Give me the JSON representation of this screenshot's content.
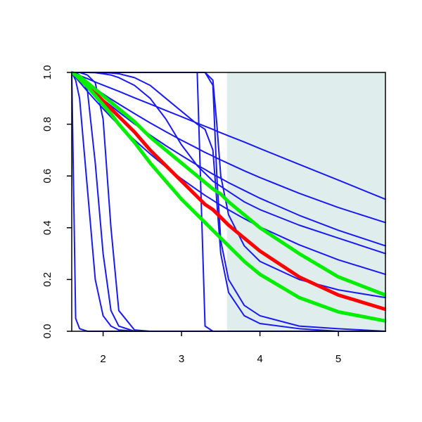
{
  "chart_data": {
    "type": "line",
    "x": [
      1.6,
      1.65,
      1.7,
      1.8,
      1.9,
      2.0,
      2.1,
      2.2,
      2.4,
      2.6,
      2.8,
      3.0,
      3.2,
      3.3,
      3.4,
      3.45,
      3.5,
      3.6,
      3.8,
      4.0,
      4.5,
      5.0,
      5.6
    ],
    "xlim": [
      1.6,
      5.6
    ],
    "ylim": [
      0,
      1
    ],
    "xticks": [
      2,
      3,
      4,
      5
    ],
    "yticks": [
      {
        "value": 0,
        "label": "0.0"
      },
      0.2,
      0.4,
      0.6,
      0.8,
      {
        "value": 1,
        "label": "1.0"
      }
    ],
    "shaded_region": [
      3.58,
      5.6
    ],
    "shade_color": "#e0eded",
    "series": [
      {
        "color": "#1a1aee",
        "values": [
          1,
          0.994,
          0.988,
          0.976,
          0.963,
          0.951,
          0.939,
          0.927,
          0.902,
          0.878,
          0.853,
          0.829,
          0.804,
          0.792,
          0.78,
          0.773,
          0.767,
          0.755,
          0.731,
          0.706,
          0.645,
          0.584,
          0.51
        ]
      },
      {
        "color": "#1a1aee",
        "values": [
          1,
          0.989,
          0.979,
          0.958,
          0.937,
          0.917,
          0.897,
          0.878,
          0.841,
          0.805,
          0.771,
          0.738,
          0.707,
          0.691,
          0.677,
          0.669,
          0.662,
          0.648,
          0.62,
          0.594,
          0.533,
          0.478,
          0.42
        ]
      },
      {
        "color": "#1a1aee",
        "values": [
          1,
          0.986,
          0.973,
          0.946,
          0.92,
          0.895,
          0.871,
          0.847,
          0.801,
          0.758,
          0.717,
          0.679,
          0.642,
          0.625,
          0.607,
          0.599,
          0.591,
          0.574,
          0.544,
          0.514,
          0.448,
          0.39,
          0.33
        ]
      },
      {
        "color": "#1a1aee",
        "values": [
          1,
          0.981,
          0.963,
          0.927,
          0.893,
          0.86,
          0.828,
          0.797,
          0.739,
          0.685,
          0.635,
          0.589,
          0.546,
          0.525,
          0.506,
          0.496,
          0.487,
          0.469,
          0.435,
          0.403,
          0.334,
          0.276,
          0.22
        ]
      },
      {
        "color": "#1a1aee",
        "values": [
          1,
          1,
          1,
          1,
          0.999,
          0.995,
          0.99,
          0.98,
          0.95,
          0.9,
          0.82,
          0.72,
          0.64,
          0.61,
          0.58,
          0.57,
          0.56,
          0.54,
          0.5,
          0.47,
          0.41,
          0.36,
          0.3
        ]
      },
      {
        "color": "#1a1aee",
        "values": [
          1,
          0.05,
          0.01,
          0,
          0,
          0,
          0,
          0,
          0,
          0,
          0,
          0,
          0,
          0,
          0,
          0,
          0,
          0,
          0,
          0,
          0,
          0,
          0
        ]
      },
      {
        "color": "#1a1aee",
        "values": [
          1,
          1,
          0.99,
          0.93,
          0.65,
          0.3,
          0.08,
          0.02,
          0,
          0,
          0,
          0,
          0,
          0,
          0,
          0,
          0,
          0,
          0,
          0,
          0,
          0,
          0
        ]
      },
      {
        "color": "#1a1aee",
        "values": [
          1,
          1,
          1,
          0.99,
          0.96,
          0.82,
          0.4,
          0.08,
          0.005,
          0,
          0,
          0,
          0,
          0,
          0,
          0,
          0,
          0,
          0,
          0,
          0,
          0,
          0
        ]
      },
      {
        "color": "#1a1aee",
        "values": [
          1,
          0.97,
          0.9,
          0.55,
          0.2,
          0.06,
          0.02,
          0.005,
          0,
          0,
          0,
          0,
          0,
          0,
          0,
          0,
          0,
          0,
          0,
          0,
          0,
          0,
          0
        ]
      },
      {
        "color": "#1a1aee",
        "values": [
          1,
          1,
          1,
          1,
          1,
          1,
          1,
          1,
          1,
          1,
          1,
          1,
          1,
          0.02,
          0,
          0,
          0,
          0,
          0,
          0,
          0,
          0,
          0
        ]
      },
      {
        "color": "#1a1aee",
        "values": [
          1,
          1,
          1,
          1,
          1,
          1,
          1,
          1,
          1,
          1,
          1,
          1,
          1,
          1,
          0.95,
          0.6,
          0.35,
          0.2,
          0.1,
          0.06,
          0.02,
          0.01,
          0
        ]
      },
      {
        "color": "#1a1aee",
        "values": [
          1,
          1,
          1,
          1,
          1,
          1,
          1,
          1,
          1,
          1,
          1,
          1,
          1,
          1,
          0.97,
          0.8,
          0.6,
          0.45,
          0.33,
          0.27,
          0.2,
          0.16,
          0.13
        ]
      },
      {
        "color": "#1a1aee",
        "values": [
          1,
          1,
          1,
          1,
          1,
          0.999,
          0.998,
          0.995,
          0.98,
          0.95,
          0.9,
          0.85,
          0.8,
          0.78,
          0.7,
          0.5,
          0.3,
          0.15,
          0.06,
          0.03,
          0.01,
          0,
          0
        ]
      },
      {
        "color": "#ff0000",
        "values": [
          1,
          0.99,
          0.98,
          0.95,
          0.92,
          0.89,
          0.86,
          0.83,
          0.77,
          0.7,
          0.64,
          0.58,
          0.52,
          0.49,
          0.47,
          0.455,
          0.44,
          0.41,
          0.36,
          0.31,
          0.21,
          0.14,
          0.085
        ]
      },
      {
        "color": "#00ee00",
        "values": [
          1,
          0.99,
          0.985,
          0.96,
          0.935,
          0.91,
          0.885,
          0.86,
          0.81,
          0.75,
          0.7,
          0.65,
          0.6,
          0.575,
          0.55,
          0.54,
          0.53,
          0.5,
          0.45,
          0.4,
          0.3,
          0.21,
          0.14
        ]
      },
      {
        "color": "#00ee00",
        "values": [
          1,
          0.99,
          0.975,
          0.945,
          0.91,
          0.875,
          0.84,
          0.8,
          0.73,
          0.65,
          0.58,
          0.51,
          0.45,
          0.42,
          0.39,
          0.375,
          0.36,
          0.33,
          0.27,
          0.22,
          0.13,
          0.075,
          0.04
        ]
      }
    ]
  }
}
